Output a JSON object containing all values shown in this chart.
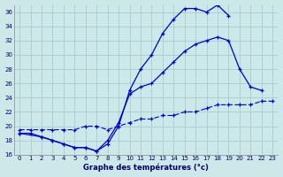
{
  "title": "Graphe des températures (°c)",
  "bg_color": "#cce8e8",
  "grid_color": "#aacccc",
  "line_color": "#0000cc",
  "xlim": [
    -0.5,
    23.5
  ],
  "ylim": [
    16,
    37
  ],
  "yticks": [
    16,
    18,
    20,
    22,
    24,
    26,
    28,
    30,
    32,
    34,
    36
  ],
  "xticks": [
    0,
    1,
    2,
    3,
    4,
    5,
    6,
    7,
    8,
    9,
    10,
    11,
    12,
    13,
    14,
    15,
    16,
    17,
    18,
    19,
    20,
    21,
    22,
    23
  ],
  "series1_x": [
    0,
    1,
    2,
    3,
    4,
    5,
    6,
    7,
    8,
    9,
    10,
    11,
    12,
    13,
    14,
    15,
    16,
    17,
    18,
    19
  ],
  "series1_y": [
    19.0,
    19.0,
    18.5,
    18.0,
    17.5,
    17.0,
    17.0,
    16.5,
    17.5,
    20.0,
    25.0,
    28.0,
    30.0,
    33.0,
    35.0,
    36.5,
    36.5,
    36.0,
    37.0,
    35.5
  ],
  "series2_x": [
    0,
    2,
    3,
    4,
    5,
    6,
    7,
    8,
    9,
    10,
    11,
    12,
    13,
    14,
    15,
    16,
    17,
    18,
    19,
    20,
    21,
    22
  ],
  "series2_y": [
    19.0,
    18.5,
    18.0,
    17.5,
    17.0,
    17.0,
    16.5,
    18.0,
    20.5,
    24.5,
    25.5,
    26.0,
    27.5,
    29.0,
    30.5,
    31.5,
    32.0,
    32.5,
    32.0,
    28.0,
    25.5,
    25.0
  ],
  "series3_x": [
    0,
    1,
    2,
    3,
    4,
    5,
    6,
    7,
    8,
    9,
    10,
    11,
    12,
    13,
    14,
    15,
    16,
    17,
    18,
    19,
    20,
    21,
    22,
    23
  ],
  "series3_y": [
    19.5,
    19.5,
    19.5,
    19.5,
    19.5,
    19.5,
    20.0,
    20.0,
    19.5,
    20.0,
    20.5,
    21.0,
    21.0,
    21.5,
    21.5,
    22.0,
    22.0,
    22.5,
    23.0,
    23.0,
    23.0,
    23.0,
    23.5,
    23.5
  ]
}
